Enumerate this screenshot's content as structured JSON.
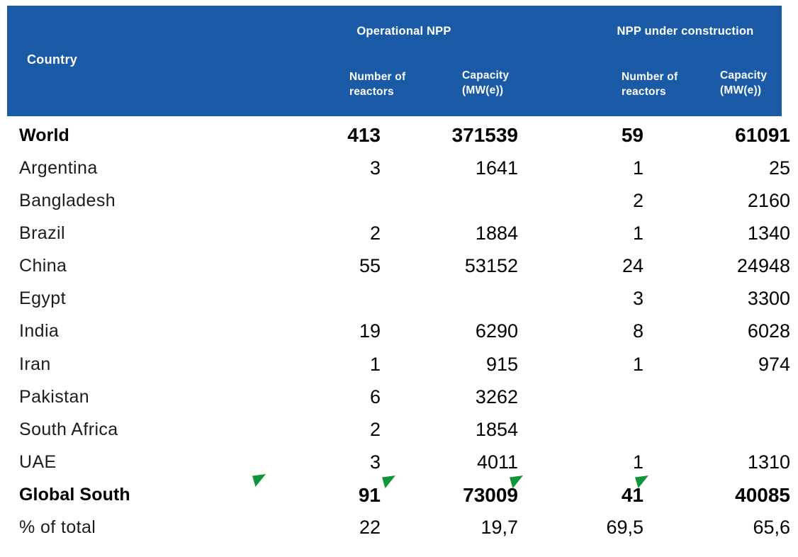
{
  "colors": {
    "header_background": "#1A5AA6",
    "header_text": "#FFFFFF",
    "body_text": "#000000",
    "marker_green": "#0E9639"
  },
  "header": {
    "country": "Country",
    "operational_group": "Operational NPP",
    "construction_group": "NPP under construction",
    "op_reactors": "Number of reactors",
    "op_capacity": "Capacity (MW(e))",
    "uc_reactors": "Number of reactors",
    "uc_capacity": "Capacity (MW(e))"
  },
  "rows": [
    {
      "country": "World",
      "op_reactors": "413",
      "op_capacity": "371539",
      "uc_reactors": "59",
      "uc_capacity": "61091",
      "bold": true
    },
    {
      "country": "Argentina",
      "op_reactors": "3",
      "op_capacity": "1641",
      "uc_reactors": "1",
      "uc_capacity": "25",
      "bold": false
    },
    {
      "country": "Bangladesh",
      "op_reactors": "",
      "op_capacity": "",
      "uc_reactors": "2",
      "uc_capacity": "2160",
      "bold": false
    },
    {
      "country": "Brazil",
      "op_reactors": "2",
      "op_capacity": "1884",
      "uc_reactors": "1",
      "uc_capacity": "1340",
      "bold": false
    },
    {
      "country": "China",
      "op_reactors": "55",
      "op_capacity": "53152",
      "uc_reactors": "24",
      "uc_capacity": "24948",
      "bold": false
    },
    {
      "country": "Egypt",
      "op_reactors": "",
      "op_capacity": "",
      "uc_reactors": "3",
      "uc_capacity": "3300",
      "bold": false
    },
    {
      "country": "India",
      "op_reactors": "19",
      "op_capacity": "6290",
      "uc_reactors": "8",
      "uc_capacity": "6028",
      "bold": false
    },
    {
      "country": "Iran",
      "op_reactors": "1",
      "op_capacity": "915",
      "uc_reactors": "1",
      "uc_capacity": "974",
      "bold": false
    },
    {
      "country": "Pakistan",
      "op_reactors": "6",
      "op_capacity": "3262",
      "uc_reactors": "",
      "uc_capacity": "",
      "bold": false
    },
    {
      "country": "South Africa",
      "op_reactors": "2",
      "op_capacity": "1854",
      "uc_reactors": "",
      "uc_capacity": "",
      "bold": false
    },
    {
      "country": "UAE",
      "op_reactors": "3",
      "op_capacity": "4011",
      "uc_reactors": "1",
      "uc_capacity": "1310",
      "bold": false
    },
    {
      "country": "Global South",
      "op_reactors": "91",
      "op_capacity": "73009",
      "uc_reactors": "41",
      "uc_capacity": "40085",
      "bold": true
    },
    {
      "country": "% of total",
      "op_reactors": "22",
      "op_capacity": "19,7",
      "uc_reactors": "69,5",
      "uc_capacity": "65,6",
      "bold": false
    }
  ],
  "markers": [
    {
      "name": "green-flag-icon",
      "attached_to": "global-south-row-country"
    },
    {
      "name": "green-flag-icon",
      "attached_to": "global-south-op-reactors"
    },
    {
      "name": "green-flag-icon",
      "attached_to": "global-south-op-capacity"
    },
    {
      "name": "green-flag-icon",
      "attached_to": "global-south-uc-reactors"
    }
  ]
}
